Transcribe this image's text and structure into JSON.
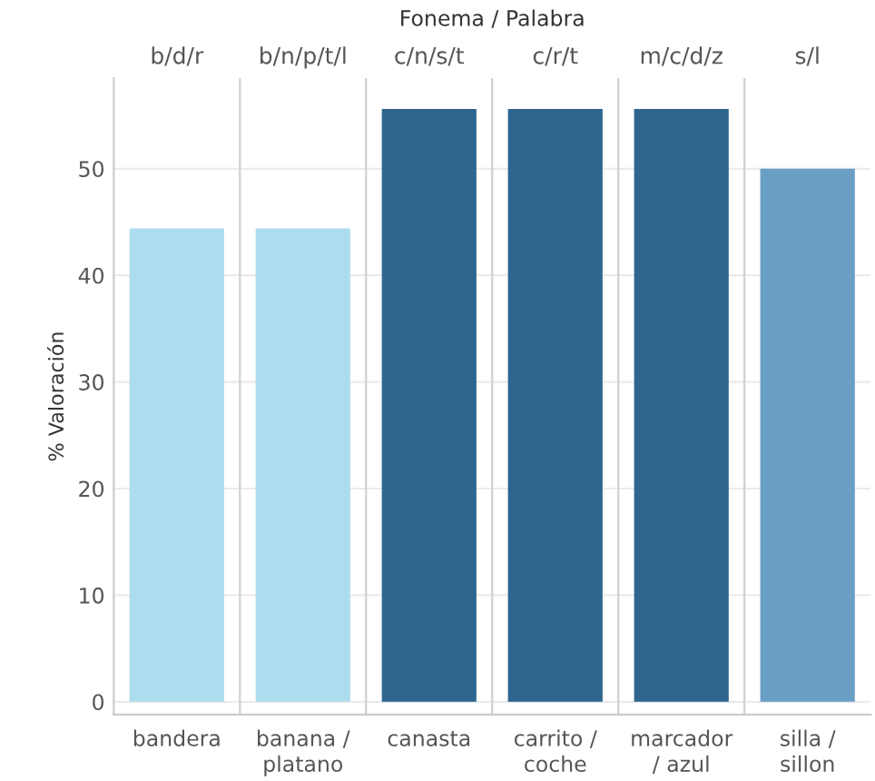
{
  "chart_data": {
    "type": "bar",
    "xlabel": "Fonema / Palabra",
    "ylabel": "% Valoración",
    "categories": [
      "bandera",
      "banana /\nplatano",
      "canasta",
      "carrito /\ncoche",
      "marcador\n/ azul",
      "silla /\nsillon"
    ],
    "annotations": [
      "b/d/r",
      "b/n/p/t/l",
      "c/n/s/t",
      "c/r/t",
      "m/c/d/z",
      "s/l"
    ],
    "values": [
      44.4,
      44.4,
      55.6,
      55.6,
      55.6,
      50
    ],
    "colors": [
      "#aedcef",
      "#aedcef",
      "#2e668f",
      "#2e668f",
      "#2e668f",
      "#6a9fc5"
    ],
    "ylim": [
      -1.2,
      58.5
    ],
    "yticks": [
      0,
      10,
      20,
      30,
      40,
      50
    ],
    "grid": "y"
  }
}
